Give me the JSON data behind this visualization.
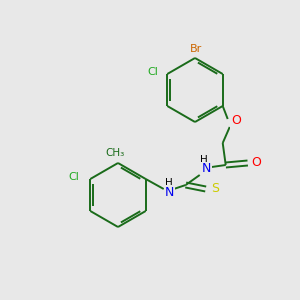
{
  "bg_color": "#e8e8e8",
  "bond_color": "#1a6b1a",
  "atom_colors": {
    "Br": "#cc6600",
    "Cl": "#22aa22",
    "O": "#ff0000",
    "N": "#0000ee",
    "S": "#cccc00",
    "C": "#1a6b1a",
    "H": "#000000"
  },
  "figsize": [
    3.0,
    3.0
  ],
  "dpi": 100
}
